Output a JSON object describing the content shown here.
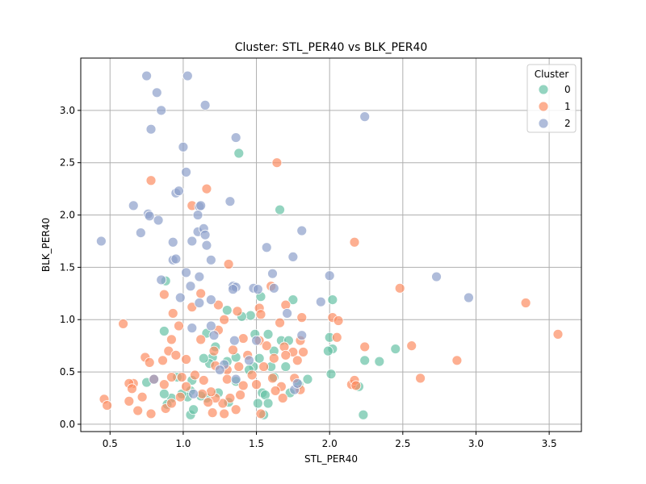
{
  "chart_data": {
    "type": "scatter",
    "title": "Cluster: STL_PER40 vs BLK_PER40",
    "xlabel": "STL_PER40",
    "ylabel": "BLK_PER40",
    "xlim": [
      0.3,
      3.72
    ],
    "ylim": [
      -0.07,
      3.5
    ],
    "x_ticks": [
      0.5,
      1.0,
      1.5,
      2.0,
      2.5,
      3.0,
      3.5
    ],
    "y_ticks": [
      0.0,
      0.5,
      1.0,
      1.5,
      2.0,
      2.5,
      3.0
    ],
    "grid": true,
    "legend": {
      "title": "Cluster",
      "placement": "top-right"
    },
    "series": [
      {
        "name": "0",
        "color": "#66c2a5",
        "points": [
          [
            1.38,
            2.59
          ],
          [
            1.66,
            2.05
          ],
          [
            0.88,
            1.37
          ],
          [
            1.3,
            1.09
          ],
          [
            1.53,
            1.22
          ],
          [
            1.75,
            1.19
          ],
          [
            1.46,
            1.04
          ],
          [
            1.4,
            1.03
          ],
          [
            1.49,
            0.86
          ],
          [
            1.58,
            0.86
          ],
          [
            1.67,
            0.8
          ],
          [
            1.72,
            0.8
          ],
          [
            2.02,
            1.19
          ],
          [
            2.0,
            0.83
          ],
          [
            2.02,
            0.72
          ],
          [
            1.99,
            0.7
          ],
          [
            1.62,
            0.7
          ],
          [
            0.87,
            0.89
          ],
          [
            1.16,
            0.87
          ],
          [
            1.22,
            0.74
          ],
          [
            1.2,
            0.64
          ],
          [
            1.18,
            0.58
          ],
          [
            1.3,
            0.6
          ],
          [
            1.36,
            0.64
          ],
          [
            1.48,
            0.55
          ],
          [
            1.52,
            0.63
          ],
          [
            1.6,
            0.55
          ],
          [
            1.62,
            0.45
          ],
          [
            1.7,
            0.55
          ],
          [
            1.79,
            0.38
          ],
          [
            1.85,
            0.43
          ],
          [
            1.73,
            0.3
          ],
          [
            1.54,
            0.3
          ],
          [
            1.56,
            0.28
          ],
          [
            1.51,
            0.2
          ],
          [
            1.58,
            0.2
          ],
          [
            1.55,
            0.09
          ],
          [
            1.31,
            0.21
          ],
          [
            1.24,
            0.3
          ],
          [
            1.16,
            0.25
          ],
          [
            1.12,
            0.27
          ],
          [
            1.05,
            0.32
          ],
          [
            1.03,
            0.26
          ],
          [
            0.99,
            0.29
          ],
          [
            0.92,
            0.25
          ],
          [
            0.89,
            0.19
          ],
          [
            0.87,
            0.29
          ],
          [
            0.96,
            0.45
          ],
          [
            1.06,
            0.42
          ],
          [
            0.75,
            0.4
          ],
          [
            1.05,
            0.09
          ],
          [
            1.07,
            0.14
          ],
          [
            2.01,
            0.48
          ],
          [
            2.24,
            0.61
          ],
          [
            2.34,
            0.6
          ],
          [
            2.45,
            0.72
          ],
          [
            2.23,
            0.09
          ],
          [
            2.2,
            0.36
          ],
          [
            1.14,
            0.63
          ],
          [
            1.36,
            0.41
          ],
          [
            1.45,
            0.52
          ]
        ]
      },
      {
        "name": "1",
        "color": "#fc8d62",
        "points": [
          [
            1.64,
            2.5
          ],
          [
            1.16,
            2.25
          ],
          [
            0.78,
            2.33
          ],
          [
            1.06,
            2.09
          ],
          [
            2.17,
            1.74
          ],
          [
            1.31,
            1.53
          ],
          [
            1.6,
            1.32
          ],
          [
            2.48,
            1.3
          ],
          [
            1.12,
            1.25
          ],
          [
            0.87,
            1.24
          ],
          [
            1.06,
            1.12
          ],
          [
            1.24,
            1.14
          ],
          [
            1.37,
            1.08
          ],
          [
            1.52,
            1.11
          ],
          [
            1.53,
            1.05
          ],
          [
            1.7,
            1.14
          ],
          [
            1.81,
            1.02
          ],
          [
            2.02,
            1.02
          ],
          [
            2.06,
            0.99
          ],
          [
            0.93,
            1.06
          ],
          [
            0.97,
            0.94
          ],
          [
            0.59,
            0.96
          ],
          [
            3.34,
            1.16
          ],
          [
            3.56,
            0.86
          ],
          [
            2.56,
            0.75
          ],
          [
            2.24,
            0.74
          ],
          [
            2.05,
            0.83
          ],
          [
            1.28,
            1.0
          ],
          [
            1.41,
            0.82
          ],
          [
            1.52,
            0.8
          ],
          [
            1.57,
            0.75
          ],
          [
            1.66,
            0.97
          ],
          [
            1.69,
            0.74
          ],
          [
            1.75,
            0.69
          ],
          [
            1.8,
            0.8
          ],
          [
            1.82,
            0.69
          ],
          [
            1.12,
            0.81
          ],
          [
            1.21,
            0.7
          ],
          [
            1.24,
            0.9
          ],
          [
            0.92,
            0.81
          ],
          [
            0.9,
            0.7
          ],
          [
            0.95,
            0.66
          ],
          [
            1.02,
            0.62
          ],
          [
            0.74,
            0.64
          ],
          [
            0.77,
            0.59
          ],
          [
            0.86,
            0.61
          ],
          [
            1.34,
            0.71
          ],
          [
            1.44,
            0.66
          ],
          [
            1.62,
            0.63
          ],
          [
            1.7,
            0.66
          ],
          [
            1.78,
            0.61
          ],
          [
            1.3,
            0.52
          ],
          [
            1.38,
            0.55
          ],
          [
            1.47,
            0.47
          ],
          [
            1.55,
            0.55
          ],
          [
            1.61,
            0.44
          ],
          [
            1.67,
            0.36
          ],
          [
            1.76,
            0.44
          ],
          [
            1.8,
            0.33
          ],
          [
            1.63,
            0.32
          ],
          [
            1.5,
            0.38
          ],
          [
            1.41,
            0.37
          ],
          [
            1.39,
            0.28
          ],
          [
            1.32,
            0.25
          ],
          [
            1.27,
            0.2
          ],
          [
            1.22,
            0.25
          ],
          [
            1.19,
            0.31
          ],
          [
            1.17,
            0.21
          ],
          [
            1.13,
            0.29
          ],
          [
            1.08,
            0.47
          ],
          [
            0.99,
            0.45
          ],
          [
            0.92,
            0.45
          ],
          [
            0.87,
            0.38
          ],
          [
            0.8,
            0.43
          ],
          [
            0.66,
            0.39
          ],
          [
            0.63,
            0.39
          ],
          [
            0.65,
            0.34
          ],
          [
            0.72,
            0.26
          ],
          [
            0.69,
            0.13
          ],
          [
            0.78,
            0.1
          ],
          [
            0.88,
            0.15
          ],
          [
            0.92,
            0.2
          ],
          [
            0.98,
            0.26
          ],
          [
            1.02,
            0.36
          ],
          [
            0.63,
            0.22
          ],
          [
            0.46,
            0.24
          ],
          [
            0.48,
            0.18
          ],
          [
            1.28,
            0.1
          ],
          [
            1.36,
            0.14
          ],
          [
            1.53,
            0.1
          ],
          [
            1.2,
            0.11
          ],
          [
            1.68,
            0.25
          ],
          [
            2.15,
            0.38
          ],
          [
            2.17,
            0.42
          ],
          [
            2.18,
            0.37
          ],
          [
            2.62,
            0.44
          ],
          [
            2.87,
            0.61
          ],
          [
            1.22,
            0.56
          ],
          [
            1.3,
            0.43
          ],
          [
            1.14,
            0.42
          ]
        ]
      },
      {
        "name": "2",
        "color": "#8da0cb",
        "points": [
          [
            0.75,
            3.33
          ],
          [
            0.82,
            3.17
          ],
          [
            1.03,
            3.33
          ],
          [
            0.85,
            3.0
          ],
          [
            1.15,
            3.05
          ],
          [
            0.78,
            2.82
          ],
          [
            1.36,
            2.74
          ],
          [
            2.24,
            2.94
          ],
          [
            1.0,
            2.65
          ],
          [
            1.02,
            2.41
          ],
          [
            0.95,
            2.21
          ],
          [
            0.97,
            2.23
          ],
          [
            1.11,
            2.08
          ],
          [
            1.12,
            2.09
          ],
          [
            1.32,
            2.13
          ],
          [
            0.66,
            2.09
          ],
          [
            0.76,
            2.01
          ],
          [
            0.77,
            1.99
          ],
          [
            1.1,
            2.0
          ],
          [
            0.83,
            1.95
          ],
          [
            0.71,
            1.83
          ],
          [
            1.1,
            1.84
          ],
          [
            1.14,
            1.87
          ],
          [
            1.15,
            1.81
          ],
          [
            1.06,
            1.75
          ],
          [
            0.93,
            1.74
          ],
          [
            0.44,
            1.75
          ],
          [
            1.81,
            1.85
          ],
          [
            1.16,
            1.71
          ],
          [
            1.57,
            1.69
          ],
          [
            1.75,
            1.6
          ],
          [
            0.93,
            1.57
          ],
          [
            0.95,
            1.58
          ],
          [
            1.19,
            1.57
          ],
          [
            1.02,
            1.45
          ],
          [
            1.61,
            1.44
          ],
          [
            2.0,
            1.42
          ],
          [
            2.73,
            1.41
          ],
          [
            1.11,
            1.41
          ],
          [
            0.85,
            1.38
          ],
          [
            1.05,
            1.32
          ],
          [
            1.34,
            1.32
          ],
          [
            1.36,
            1.31
          ],
          [
            1.48,
            1.3
          ],
          [
            1.51,
            1.29
          ],
          [
            1.62,
            1.3
          ],
          [
            1.34,
            1.29
          ],
          [
            0.98,
            1.21
          ],
          [
            1.19,
            1.19
          ],
          [
            1.11,
            1.16
          ],
          [
            1.94,
            1.17
          ],
          [
            2.95,
            1.21
          ],
          [
            1.71,
            1.06
          ],
          [
            1.06,
            0.92
          ],
          [
            1.19,
            0.94
          ],
          [
            1.21,
            0.85
          ],
          [
            1.5,
            0.8
          ],
          [
            1.35,
            0.8
          ],
          [
            1.81,
            0.85
          ],
          [
            1.28,
            0.57
          ],
          [
            1.36,
            0.43
          ],
          [
            1.76,
            0.33
          ],
          [
            1.07,
            0.29
          ],
          [
            0.8,
            0.43
          ],
          [
            1.78,
            0.39
          ],
          [
            1.25,
            0.52
          ],
          [
            1.45,
            0.61
          ]
        ]
      }
    ]
  }
}
